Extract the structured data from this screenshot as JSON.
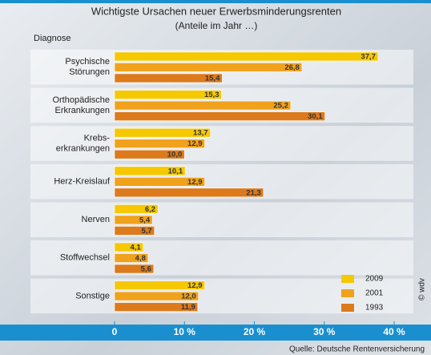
{
  "chart_data": {
    "type": "barh",
    "title": "Wichtigste Ursachen neuer Erwerbsminderungsrenten",
    "subtitle": "(Anteile im Jahr …)",
    "y_label": "Diagnose",
    "source": "Quelle: Deutsche Rentenversicherung",
    "copyright": "© wdv",
    "categories": [
      [
        "Psychische",
        "Störungen"
      ],
      [
        "Orthopädische",
        "Erkrankungen"
      ],
      [
        "Krebs-",
        "erkrankungen"
      ],
      [
        "Herz-Kreislauf"
      ],
      [
        "Nerven"
      ],
      [
        "Stoffwechsel"
      ],
      [
        "Sonstige"
      ]
    ],
    "series": [
      {
        "name": "2009",
        "color": "#f5c800",
        "values": [
          37.7,
          15.3,
          13.7,
          10.1,
          6.2,
          4.1,
          12.9
        ],
        "value_labels": [
          "37,7",
          "15,3",
          "13,7",
          "10,1",
          "6,2",
          "4,1",
          "12,9"
        ]
      },
      {
        "name": "2001",
        "color": "#f0a21c",
        "values": [
          26.8,
          25.2,
          12.9,
          12.9,
          5.4,
          4.8,
          12.0
        ],
        "value_labels": [
          "26,8",
          "25,2",
          "12,9",
          "12,9",
          "5,4",
          "4,8",
          "12,0"
        ]
      },
      {
        "name": "1993",
        "color": "#dc7a1c",
        "values": [
          15.4,
          30.1,
          10.0,
          21.3,
          5.7,
          5.6,
          11.9
        ],
        "value_labels": [
          "15,4",
          "30,1",
          "10,0",
          "21,3",
          "5,7",
          "5,6",
          "11,9"
        ]
      }
    ],
    "xlim": [
      0,
      40
    ],
    "xticks": [
      0,
      {
        "value": 10,
        "label": "10 %"
      },
      {
        "value": 20,
        "label": "20 %"
      },
      {
        "value": 30,
        "label": "30 %"
      },
      {
        "value": 40,
        "label": "40 %"
      }
    ],
    "legend": "bottom-right"
  }
}
